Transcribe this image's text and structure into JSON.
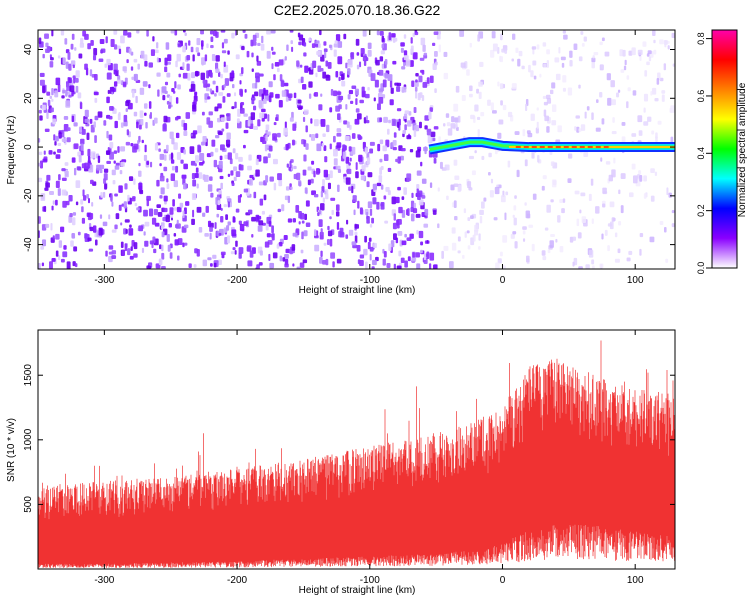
{
  "title": "C2E2.2025.070.18.36.G22",
  "chart_data": [
    {
      "type": "heatmap",
      "xlabel": "Height of straight line (km)",
      "ylabel": "Frequency (Hz)",
      "xlim": [
        -350,
        130
      ],
      "ylim": [
        -50,
        48
      ],
      "xticks": [
        -300,
        -200,
        -100,
        0,
        100
      ],
      "yticks": [
        -40,
        -20,
        0,
        20,
        40
      ],
      "grid": false,
      "colorbar": {
        "label": "Normalized spectral amplitude",
        "range": [
          0,
          0.83
        ],
        "ticks": [
          "0.0",
          "0.2",
          "0.4",
          "0.6",
          "0.8"
        ],
        "colors": [
          "#ffffff",
          "#8a00ff",
          "#0000ff",
          "#00ffff",
          "#00ff00",
          "#ffff00",
          "#ff8000",
          "#ff0000",
          "#ff00aa"
        ]
      },
      "features": {
        "noise_region_x": [
          -350,
          -50
        ],
        "signal_track": {
          "x": [
            -55,
            -45,
            -35,
            -25,
            -15,
            -5,
            0,
            20,
            60,
            100,
            130
          ],
          "y": [
            -1,
            0,
            1,
            2,
            2,
            1,
            0.5,
            0,
            0,
            0,
            0
          ]
        }
      }
    },
    {
      "type": "line",
      "xlabel": "Height of straight line (km)",
      "ylabel": "SNR (10 * v/v)",
      "xlim": [
        -350,
        130
      ],
      "ylim": [
        0,
        1850
      ],
      "xticks": [
        -300,
        -200,
        -100,
        0,
        100
      ],
      "yticks": [
        500,
        1000,
        1500
      ],
      "color": "#f03232",
      "grid": false,
      "envelope": {
        "x": [
          -350,
          -300,
          -250,
          -200,
          -150,
          -100,
          -50,
          -20,
          0,
          20,
          40,
          60,
          80,
          100,
          130
        ],
        "low": [
          40,
          40,
          50,
          60,
          80,
          100,
          120,
          150,
          200,
          300,
          350,
          350,
          320,
          300,
          250
        ],
        "high": [
          650,
          680,
          720,
          780,
          850,
          950,
          1050,
          1150,
          1250,
          1600,
          1650,
          1550,
          1450,
          1400,
          1350
        ]
      }
    }
  ]
}
